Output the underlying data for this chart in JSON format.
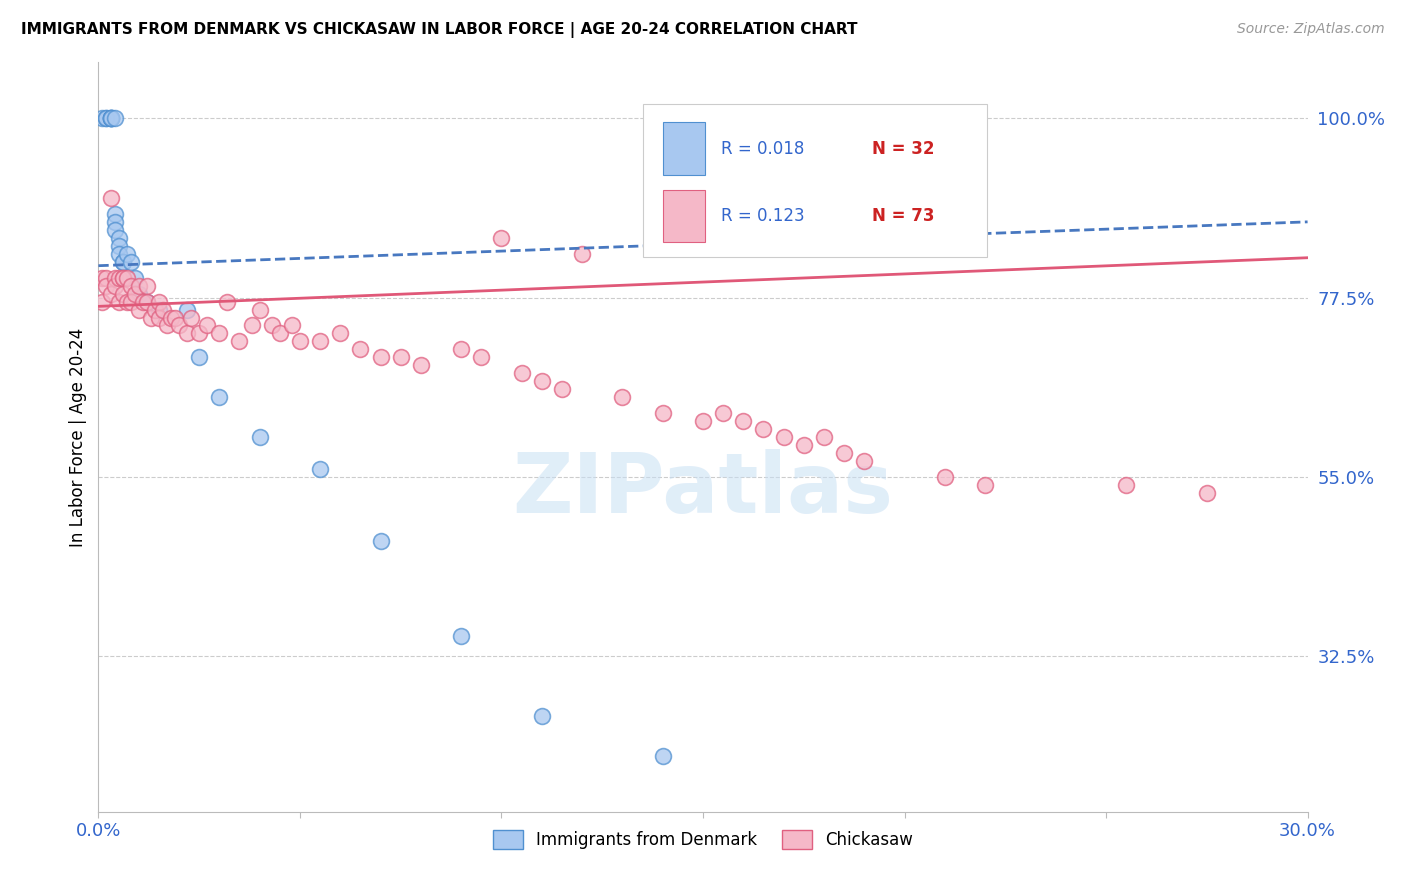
{
  "title": "IMMIGRANTS FROM DENMARK VS CHICKASAW IN LABOR FORCE | AGE 20-24 CORRELATION CHART",
  "source": "Source: ZipAtlas.com",
  "ylabel": "In Labor Force | Age 20-24",
  "xlim": [
    0.0,
    0.3
  ],
  "ylim": [
    0.13,
    1.07
  ],
  "yticks_right": [
    1.0,
    0.775,
    0.55,
    0.325
  ],
  "yticklabels_right": [
    "100.0%",
    "77.5%",
    "55.0%",
    "32.5%"
  ],
  "color_denmark": "#a8c8f0",
  "color_chickasaw": "#f5b8c8",
  "color_denmark_edge": "#5090d0",
  "color_chickasaw_edge": "#e06080",
  "color_denmark_line": "#4878c0",
  "color_chickasaw_line": "#e05878",
  "color_blue_text": "#3366cc",
  "color_red_text": "#cc2222",
  "dk_line_y0": 0.815,
  "dk_line_y1": 0.87,
  "ck_line_y0": 0.764,
  "ck_line_y1": 0.825,
  "denmark_x": [
    0.001,
    0.002,
    0.002,
    0.003,
    0.003,
    0.003,
    0.003,
    0.003,
    0.004,
    0.004,
    0.004,
    0.004,
    0.005,
    0.005,
    0.005,
    0.006,
    0.006,
    0.007,
    0.008,
    0.009,
    0.01,
    0.012,
    0.015,
    0.022,
    0.025,
    0.03,
    0.04,
    0.055,
    0.07,
    0.09,
    0.11,
    0.14
  ],
  "denmark_y": [
    1.0,
    1.0,
    1.0,
    1.0,
    1.0,
    1.0,
    1.0,
    1.0,
    1.0,
    0.88,
    0.87,
    0.86,
    0.85,
    0.84,
    0.83,
    0.82,
    0.82,
    0.83,
    0.82,
    0.8,
    0.78,
    0.77,
    0.76,
    0.76,
    0.7,
    0.65,
    0.6,
    0.56,
    0.47,
    0.35,
    0.25,
    0.2
  ],
  "chickasaw_x": [
    0.001,
    0.001,
    0.002,
    0.002,
    0.003,
    0.003,
    0.004,
    0.004,
    0.005,
    0.005,
    0.006,
    0.006,
    0.006,
    0.007,
    0.007,
    0.008,
    0.008,
    0.009,
    0.01,
    0.01,
    0.011,
    0.012,
    0.012,
    0.013,
    0.014,
    0.015,
    0.015,
    0.016,
    0.017,
    0.018,
    0.019,
    0.02,
    0.022,
    0.023,
    0.025,
    0.027,
    0.03,
    0.032,
    0.035,
    0.038,
    0.04,
    0.043,
    0.045,
    0.048,
    0.05,
    0.055,
    0.06,
    0.065,
    0.07,
    0.075,
    0.08,
    0.09,
    0.095,
    0.1,
    0.105,
    0.11,
    0.115,
    0.12,
    0.13,
    0.14,
    0.15,
    0.155,
    0.16,
    0.165,
    0.17,
    0.175,
    0.18,
    0.185,
    0.19,
    0.21,
    0.22,
    0.255,
    0.275
  ],
  "chickasaw_y": [
    0.8,
    0.77,
    0.8,
    0.79,
    0.9,
    0.78,
    0.8,
    0.79,
    0.8,
    0.77,
    0.8,
    0.8,
    0.78,
    0.8,
    0.77,
    0.79,
    0.77,
    0.78,
    0.79,
    0.76,
    0.77,
    0.79,
    0.77,
    0.75,
    0.76,
    0.77,
    0.75,
    0.76,
    0.74,
    0.75,
    0.75,
    0.74,
    0.73,
    0.75,
    0.73,
    0.74,
    0.73,
    0.77,
    0.72,
    0.74,
    0.76,
    0.74,
    0.73,
    0.74,
    0.72,
    0.72,
    0.73,
    0.71,
    0.7,
    0.7,
    0.69,
    0.71,
    0.7,
    0.85,
    0.68,
    0.67,
    0.66,
    0.83,
    0.65,
    0.63,
    0.62,
    0.63,
    0.62,
    0.61,
    0.6,
    0.59,
    0.6,
    0.58,
    0.57,
    0.55,
    0.54,
    0.54,
    0.53
  ]
}
